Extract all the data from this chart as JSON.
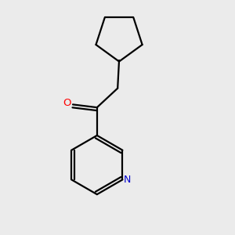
{
  "background_color": "#ebebeb",
  "bond_color": "#000000",
  "o_color": "#ff0000",
  "n_color": "#0000cc",
  "line_width": 1.6,
  "dbo": 0.012,
  "figsize": [
    3.0,
    3.0
  ],
  "dpi": 100,
  "xlim": [
    0.1,
    0.9
  ],
  "ylim": [
    0.05,
    0.95
  ]
}
